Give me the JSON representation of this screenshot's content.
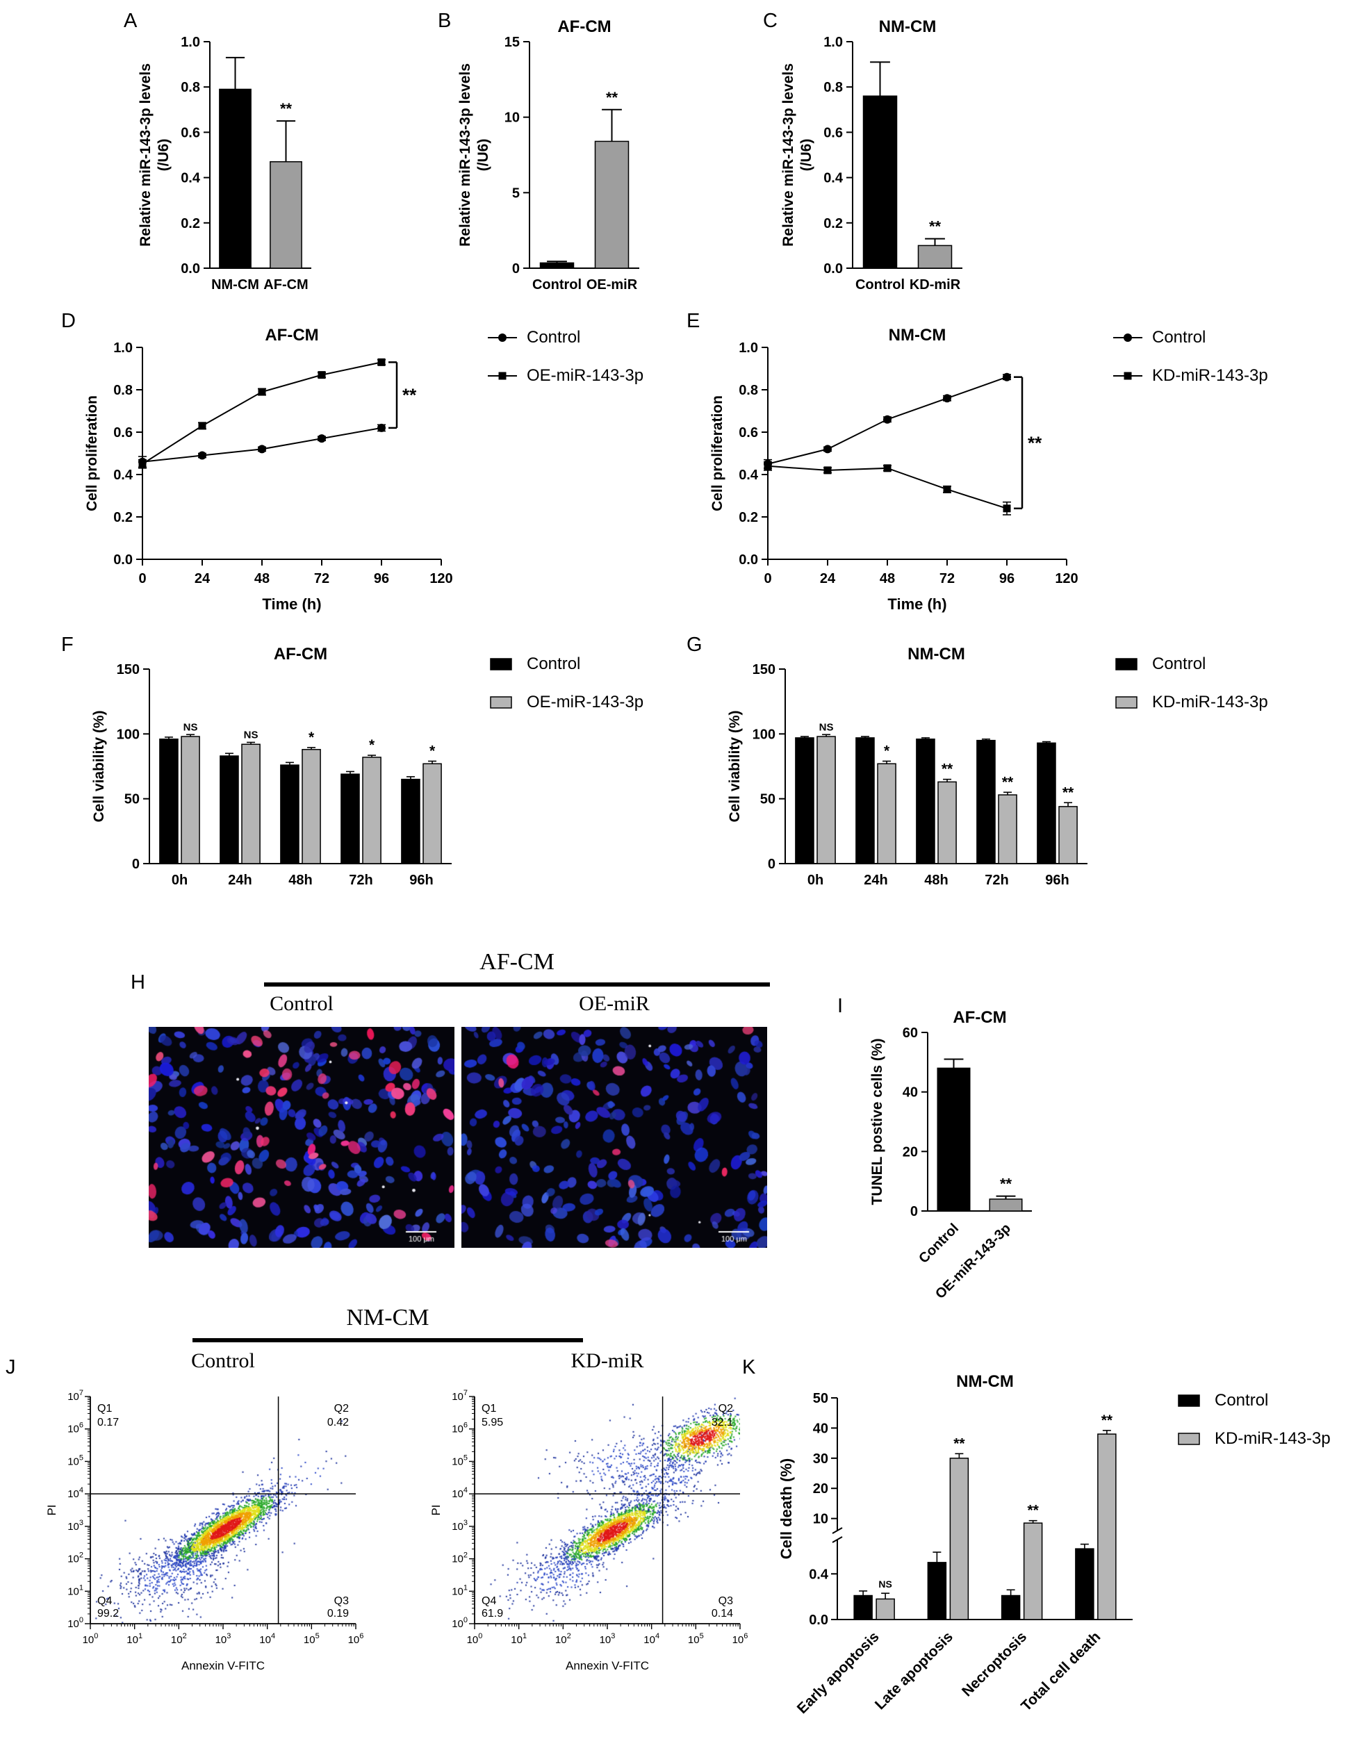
{
  "panels": {
    "A": {
      "label": "A"
    },
    "B": {
      "label": "B"
    },
    "C": {
      "label": "C"
    },
    "D": {
      "label": "D"
    },
    "E": {
      "label": "E"
    },
    "F": {
      "label": "F"
    },
    "G": {
      "label": "G"
    },
    "H": {
      "label": "H",
      "header": "AF-CM",
      "left": "Control",
      "right": "OE-miR"
    },
    "I": {
      "label": "I"
    },
    "J": {
      "label": "J",
      "header": "NM-CM",
      "left": "Control",
      "right": "KD-miR"
    },
    "K": {
      "label": "K"
    }
  },
  "legends": {
    "D": [
      {
        "label": "Control",
        "marker": "circle",
        "color": "#000000"
      },
      {
        "label": "OE-miR-143-3p",
        "marker": "square",
        "color": "#000000"
      }
    ],
    "E": [
      {
        "label": "Control",
        "marker": "circle",
        "color": "#000000"
      },
      {
        "label": "KD-miR-143-3p",
        "marker": "square",
        "color": "#000000"
      }
    ],
    "F": [
      {
        "label": "Control",
        "marker": "rect",
        "color": "#000000"
      },
      {
        "label": "OE-miR-143-3p",
        "marker": "rect",
        "color": "#b5b5b5"
      }
    ],
    "G": [
      {
        "label": "Control",
        "marker": "rect",
        "color": "#000000"
      },
      {
        "label": "KD-miR-143-3p",
        "marker": "rect",
        "color": "#b5b5b5"
      }
    ],
    "K": [
      {
        "label": "Control",
        "marker": "rect",
        "color": "#000000"
      },
      {
        "label": "KD-miR-143-3p",
        "marker": "rect",
        "color": "#b5b5b5"
      }
    ]
  },
  "chart_data": [
    {
      "id": "A",
      "type": "bar",
      "title": "",
      "ylabel_lines": [
        "Relative miR-143-3p levels",
        "(/U6)"
      ],
      "ylim": [
        0,
        1.0
      ],
      "yticks": [
        0,
        0.2,
        0.4,
        0.6,
        0.8,
        1.0
      ],
      "ydec": 1,
      "categories": [
        "NM-CM",
        "AF-CM"
      ],
      "values": [
        0.79,
        0.47
      ],
      "errors": [
        0.14,
        0.18
      ],
      "colors": [
        "#000000",
        "#9e9e9e"
      ],
      "annotations": [
        "",
        "**"
      ]
    },
    {
      "id": "B",
      "type": "bar",
      "title": "AF-CM",
      "ylabel_lines": [
        "Relative miR-143-3p levels",
        "(/U6)"
      ],
      "ylim": [
        0,
        15
      ],
      "yticks": [
        0,
        5,
        10,
        15
      ],
      "ydec": 0,
      "categories": [
        "Control",
        "OE-miR"
      ],
      "values": [
        0.35,
        8.4
      ],
      "errors": [
        0.1,
        2.1
      ],
      "colors": [
        "#000000",
        "#9e9e9e"
      ],
      "annotations": [
        "",
        "**"
      ]
    },
    {
      "id": "C",
      "type": "bar",
      "title": "NM-CM",
      "ylabel_lines": [
        "Relative miR-143-3p levels",
        "(/U6)"
      ],
      "ylim": [
        0,
        1.0
      ],
      "yticks": [
        0,
        0.2,
        0.4,
        0.6,
        0.8,
        1.0
      ],
      "ydec": 1,
      "categories": [
        "Control",
        "KD-miR"
      ],
      "values": [
        0.76,
        0.1
      ],
      "errors": [
        0.15,
        0.03
      ],
      "colors": [
        "#000000",
        "#9e9e9e"
      ],
      "annotations": [
        "",
        "**"
      ]
    },
    {
      "id": "D",
      "type": "line",
      "title": "AF-CM",
      "ylabel": "Cell proliferation",
      "xlabel": "Time (h)",
      "x": [
        0,
        24,
        48,
        72,
        96
      ],
      "xlim": [
        0,
        120
      ],
      "xticks": [
        0,
        24,
        48,
        72,
        96,
        120
      ],
      "ylim": [
        0,
        1.0
      ],
      "yticks": [
        0,
        0.2,
        0.4,
        0.6,
        0.8,
        1.0
      ],
      "ydec": 1,
      "series": [
        {
          "name": "Control",
          "marker": "circle",
          "values": [
            0.46,
            0.49,
            0.52,
            0.57,
            0.62
          ],
          "errors": [
            0.025,
            0.01,
            0.01,
            0.01,
            0.015
          ]
        },
        {
          "name": "OE-miR-143-3p",
          "marker": "square",
          "values": [
            0.45,
            0.63,
            0.79,
            0.87,
            0.93
          ],
          "errors": [
            0.02,
            0.015,
            0.015,
            0.012,
            0.012
          ]
        }
      ],
      "bracket": {
        "x": 96,
        "y1": 0.62,
        "y2": 0.93,
        "label": "**"
      }
    },
    {
      "id": "E",
      "type": "line",
      "title": "NM-CM",
      "ylabel": "Cell proliferation",
      "xlabel": "Time (h)",
      "x": [
        0,
        24,
        48,
        72,
        96
      ],
      "xlim": [
        0,
        120
      ],
      "xticks": [
        0,
        24,
        48,
        72,
        96,
        120
      ],
      "ylim": [
        0,
        1.0
      ],
      "yticks": [
        0,
        0.2,
        0.4,
        0.6,
        0.8,
        1.0
      ],
      "ydec": 1,
      "series": [
        {
          "name": "Control",
          "marker": "circle",
          "values": [
            0.45,
            0.52,
            0.66,
            0.76,
            0.86
          ],
          "errors": [
            0.02,
            0.01,
            0.012,
            0.012,
            0.012
          ]
        },
        {
          "name": "KD-miR-143-3p",
          "marker": "square",
          "values": [
            0.44,
            0.42,
            0.43,
            0.33,
            0.24
          ],
          "errors": [
            0.02,
            0.012,
            0.012,
            0.015,
            0.03
          ]
        }
      ],
      "bracket": {
        "x": 96,
        "y1": 0.86,
        "y2": 0.24,
        "label": "**"
      }
    },
    {
      "id": "F",
      "type": "grouped_bar",
      "title": "AF-CM",
      "ylabel": "Cell viability (%)",
      "ylim": [
        0,
        150
      ],
      "yticks": [
        0,
        50,
        100,
        150
      ],
      "ydec": 0,
      "categories": [
        "0h",
        "24h",
        "48h",
        "72h",
        "96h"
      ],
      "series": [
        {
          "name": "Control",
          "color": "#000000",
          "values": [
            96,
            83,
            76,
            69,
            65
          ],
          "errors": [
            1.5,
            2,
            2,
            2,
            2
          ]
        },
        {
          "name": "OE-miR-143-3p",
          "color": "#b5b5b5",
          "values": [
            98,
            92,
            88,
            82,
            77
          ],
          "errors": [
            1.5,
            1.5,
            1.5,
            1.5,
            2
          ]
        }
      ],
      "annotations": [
        "NS",
        "NS",
        "*",
        "*",
        "*"
      ]
    },
    {
      "id": "G",
      "type": "grouped_bar",
      "title": "NM-CM",
      "ylabel": "Cell viability (%)",
      "ylim": [
        0,
        150
      ],
      "yticks": [
        0,
        50,
        100,
        150
      ],
      "ydec": 0,
      "categories": [
        "0h",
        "24h",
        "48h",
        "72h",
        "96h"
      ],
      "series": [
        {
          "name": "Control",
          "color": "#000000",
          "values": [
            97,
            97,
            96,
            95,
            93
          ],
          "errors": [
            1,
            1,
            1,
            1,
            1
          ]
        },
        {
          "name": "KD-miR-143-3p",
          "color": "#b5b5b5",
          "values": [
            98,
            77,
            63,
            53,
            44
          ],
          "errors": [
            1.5,
            2,
            2,
            2,
            3
          ]
        }
      ],
      "annotations": [
        "NS",
        "*",
        "**",
        "**",
        "**"
      ]
    },
    {
      "id": "I",
      "type": "bar",
      "title": "AF-CM",
      "ylabel_lines": [
        "TUNEL postive cells (%)"
      ],
      "ylim": [
        0,
        60
      ],
      "yticks": [
        0,
        20,
        40,
        60
      ],
      "ydec": 0,
      "categories": [
        "Control",
        "OE-miR-143-3p"
      ],
      "values": [
        48,
        4
      ],
      "errors": [
        3,
        1
      ],
      "colors": [
        "#000000",
        "#9e9e9e"
      ],
      "annotations": [
        "",
        "**"
      ],
      "rotate_labels": true
    },
    {
      "id": "K",
      "type": "broken_bar",
      "title": "NM-CM",
      "ylabel": "Cell death (%)",
      "lower": {
        "lim": [
          0,
          0.7
        ],
        "ticks": [
          0,
          0.4
        ]
      },
      "upper": {
        "lim": [
          6,
          50
        ],
        "ticks": [
          10,
          20,
          30,
          40,
          50
        ]
      },
      "categories": [
        "Early apoptosis",
        "Late apoptosis",
        "Necroptosis",
        "Total cell death"
      ],
      "series": [
        {
          "name": "Control",
          "color": "#000000",
          "values": [
            0.21,
            0.5,
            0.21,
            0.62
          ],
          "errors": [
            0.04,
            0.09,
            0.05,
            0.04
          ]
        },
        {
          "name": "KD-miR-143-3p",
          "color": "#b5b5b5",
          "values": [
            0.18,
            30,
            8.5,
            38
          ],
          "errors": [
            0.05,
            1.5,
            0.8,
            1.2
          ]
        }
      ],
      "annotations": [
        "NS",
        "**",
        "**",
        "**"
      ]
    },
    {
      "id": "J1",
      "type": "flow",
      "xlabel": "Annexin V-FITC",
      "ylabel": "PI",
      "x_decades": 6,
      "y_decades": 7,
      "quad_x": 4.25,
      "quad_y": 4.0,
      "seed": 3,
      "quadrants": {
        "Q1": "0.17",
        "Q2": "0.42",
        "Q3": "0.19",
        "Q4": "99.2"
      },
      "clusters": [
        {
          "cx": 3.05,
          "cy": 2.95,
          "angle": 42,
          "sa": 0.75,
          "sp": 0.2,
          "n": 2600,
          "style": "density"
        },
        {
          "cx": 1.9,
          "cy": 1.6,
          "angle": 35,
          "sa": 0.8,
          "sp": 0.45,
          "n": 550,
          "style": "sparse"
        },
        {
          "cx": 4.6,
          "cy": 4.6,
          "angle": 40,
          "sa": 0.7,
          "sp": 0.5,
          "n": 40,
          "style": "sparse"
        }
      ]
    },
    {
      "id": "J2",
      "type": "flow",
      "xlabel": "Annexin V-FITC",
      "ylabel": "PI",
      "x_decades": 6,
      "y_decades": 7,
      "quad_x": 4.25,
      "quad_y": 4.0,
      "seed": 5,
      "quadrants": {
        "Q1": "5.95",
        "Q2": "32.1",
        "Q3": "0.14",
        "Q4": "61.9"
      },
      "clusters": [
        {
          "cx": 3.1,
          "cy": 2.85,
          "angle": 40,
          "sa": 0.7,
          "sp": 0.22,
          "n": 1900,
          "style": "density"
        },
        {
          "cx": 5.15,
          "cy": 5.75,
          "angle": 33,
          "sa": 0.55,
          "sp": 0.28,
          "n": 1000,
          "style": "density"
        },
        {
          "cx": 4.2,
          "cy": 4.4,
          "angle": 45,
          "sa": 0.8,
          "sp": 0.5,
          "n": 350,
          "style": "sparse"
        },
        {
          "cx": 3.4,
          "cy": 5.0,
          "angle": 20,
          "sa": 0.8,
          "sp": 0.5,
          "n": 220,
          "style": "sparse"
        },
        {
          "cx": 2.0,
          "cy": 1.6,
          "angle": 35,
          "sa": 0.7,
          "sp": 0.45,
          "n": 300,
          "style": "sparse"
        }
      ]
    },
    {
      "id": "H1",
      "type": "microscopy",
      "blue_count": 250,
      "red_count": 46,
      "white_count": 6,
      "scalebar": "100 μm",
      "seed": 7,
      "colors": {
        "nucleus_blue": "#3d4fd2",
        "tunel_red": "#f0407d"
      }
    },
    {
      "id": "H2",
      "type": "microscopy",
      "blue_count": 250,
      "red_count": 9,
      "white_count": 3,
      "scalebar": "100 μm",
      "seed": 13,
      "colors": {
        "nucleus_blue": "#3d4fd2",
        "tunel_red": "#f0407d"
      }
    }
  ]
}
